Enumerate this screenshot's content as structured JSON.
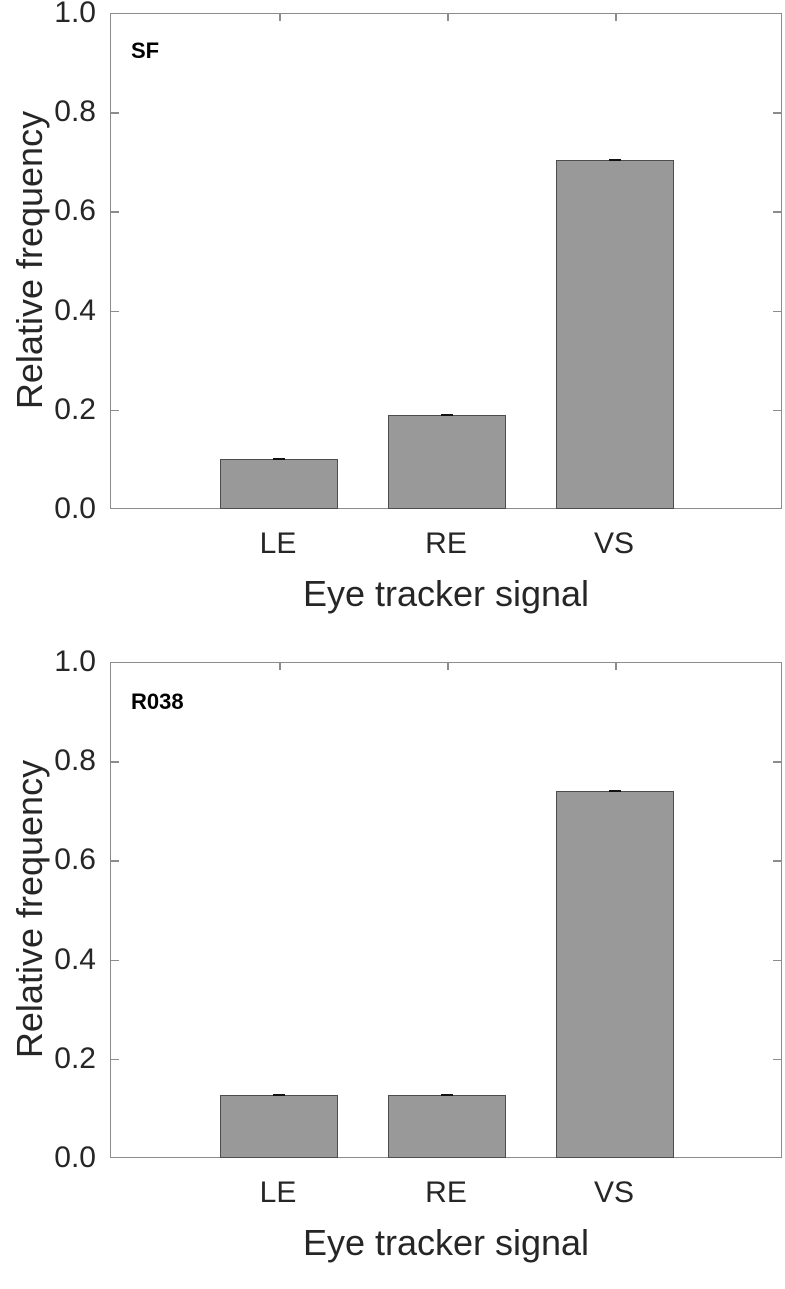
{
  "chart_data": [
    {
      "type": "bar",
      "title": "SF",
      "categories": [
        "LE",
        "RE",
        "VS"
      ],
      "values": [
        0.102,
        0.192,
        0.706
      ],
      "xlabel": "Eye tracker signal",
      "ylabel": "Relative frequency",
      "ylim": [
        0.0,
        1.0
      ],
      "yticks": [
        "0.0",
        "0.2",
        "0.4",
        "0.6",
        "0.8",
        "1.0"
      ],
      "grid": false,
      "bar_color": "#999999",
      "error_bars": "very small (visible as tiny ticks at bar tops)"
    },
    {
      "type": "bar",
      "title": "R038",
      "categories": [
        "LE",
        "RE",
        "VS"
      ],
      "values": [
        0.129,
        0.129,
        0.742
      ],
      "xlabel": "Eye tracker signal",
      "ylabel": "Relative frequency",
      "ylim": [
        0.0,
        1.0
      ],
      "yticks": [
        "0.0",
        "0.2",
        "0.4",
        "0.6",
        "0.8",
        "1.0"
      ],
      "grid": false,
      "bar_color": "#999999",
      "error_bars": "very small (visible as tiny ticks at bar tops)"
    }
  ],
  "panels": [
    {
      "tag": "SF",
      "xlabel": "Eye tracker signal",
      "ylabel": "Relative frequency",
      "categories": [
        "LE",
        "RE",
        "VS"
      ],
      "yticks": [
        "0.0",
        "0.2",
        "0.4",
        "0.6",
        "0.8",
        "1.0"
      ]
    },
    {
      "tag": "R038",
      "xlabel": "Eye tracker signal",
      "ylabel": "Relative frequency",
      "categories": [
        "LE",
        "RE",
        "VS"
      ],
      "yticks": [
        "0.0",
        "0.2",
        "0.4",
        "0.6",
        "0.8",
        "1.0"
      ]
    }
  ]
}
